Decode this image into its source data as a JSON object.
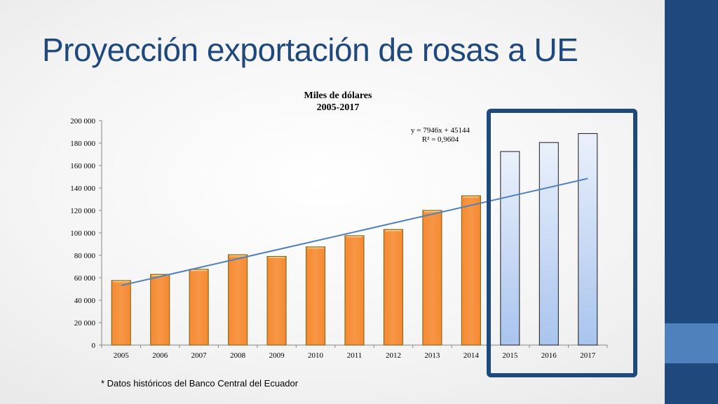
{
  "slide": {
    "title": "Proyección exportación de rosas a UE",
    "footnote": "* Datos  históricos del Banco Central del  Ecuador"
  },
  "colors": {
    "sidebar": "#1f497d",
    "sidebar_accent": "#4f81bd",
    "historical_bar": "#f79646",
    "projected_bar": "#c6d9f1",
    "trendline": "#4f81bd",
    "highlight_box": "#1f497d"
  },
  "chart_data": {
    "type": "bar",
    "title": "Miles de dólares",
    "subtitle": "2005-2017",
    "xlabel": "",
    "ylabel": "",
    "categories": [
      "2005",
      "2006",
      "2007",
      "2008",
      "2009",
      "2010",
      "2011",
      "2012",
      "2013",
      "2014",
      "2015",
      "2016",
      "2017"
    ],
    "values": [
      57500,
      63000,
      67500,
      80500,
      79000,
      87500,
      97500,
      103000,
      120000,
      133000,
      172500,
      180500,
      188500
    ],
    "projected_from_index": 10,
    "ylim": [
      0,
      200000
    ],
    "yticks": [
      0,
      20000,
      40000,
      60000,
      80000,
      100000,
      120000,
      140000,
      160000,
      180000,
      200000
    ],
    "ytick_labels": [
      "0",
      "20 000",
      "40 000",
      "60 000",
      "80 000",
      "100 000",
      "120 000",
      "140 000",
      "160 000",
      "180 000",
      "200 000"
    ],
    "trendline": {
      "slope": 7946,
      "intercept": 45144,
      "equation_label": "y = 7946x + 45144",
      "r2_label": "R² = 0,9604"
    },
    "grid": false,
    "legend": "none",
    "highlight": "projected years 2015-2017"
  }
}
